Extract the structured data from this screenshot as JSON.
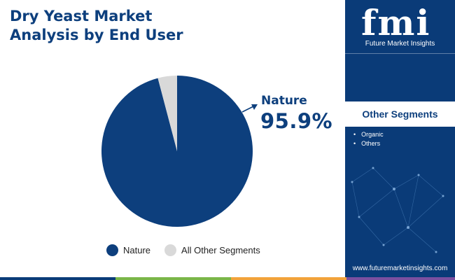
{
  "chart_data": {
    "type": "pie",
    "title": "Dry Yeast Market\nAnalysis by End User",
    "slices": [
      {
        "label": "Nature",
        "value": 95.9,
        "color": "#0d3f7d"
      },
      {
        "label": "All Other Segments",
        "value": 4.1,
        "color": "#d9d9d9"
      }
    ],
    "callout": {
      "label": "Nature",
      "value_text": "95.9%"
    },
    "legend_position": "bottom"
  },
  "brand": {
    "logo": "fmi",
    "name": "Future Market Insights",
    "url": "www.futuremarketinsights.com"
  },
  "side_panel": {
    "title": "Other Segments",
    "items": [
      "Organic",
      "Others"
    ]
  },
  "colors": {
    "primary": "#0d3f7d",
    "panel": "#0a3b78",
    "bar": [
      "#0a3b78",
      "#7ab648",
      "#f2a33a",
      "#7b4fa0"
    ]
  }
}
